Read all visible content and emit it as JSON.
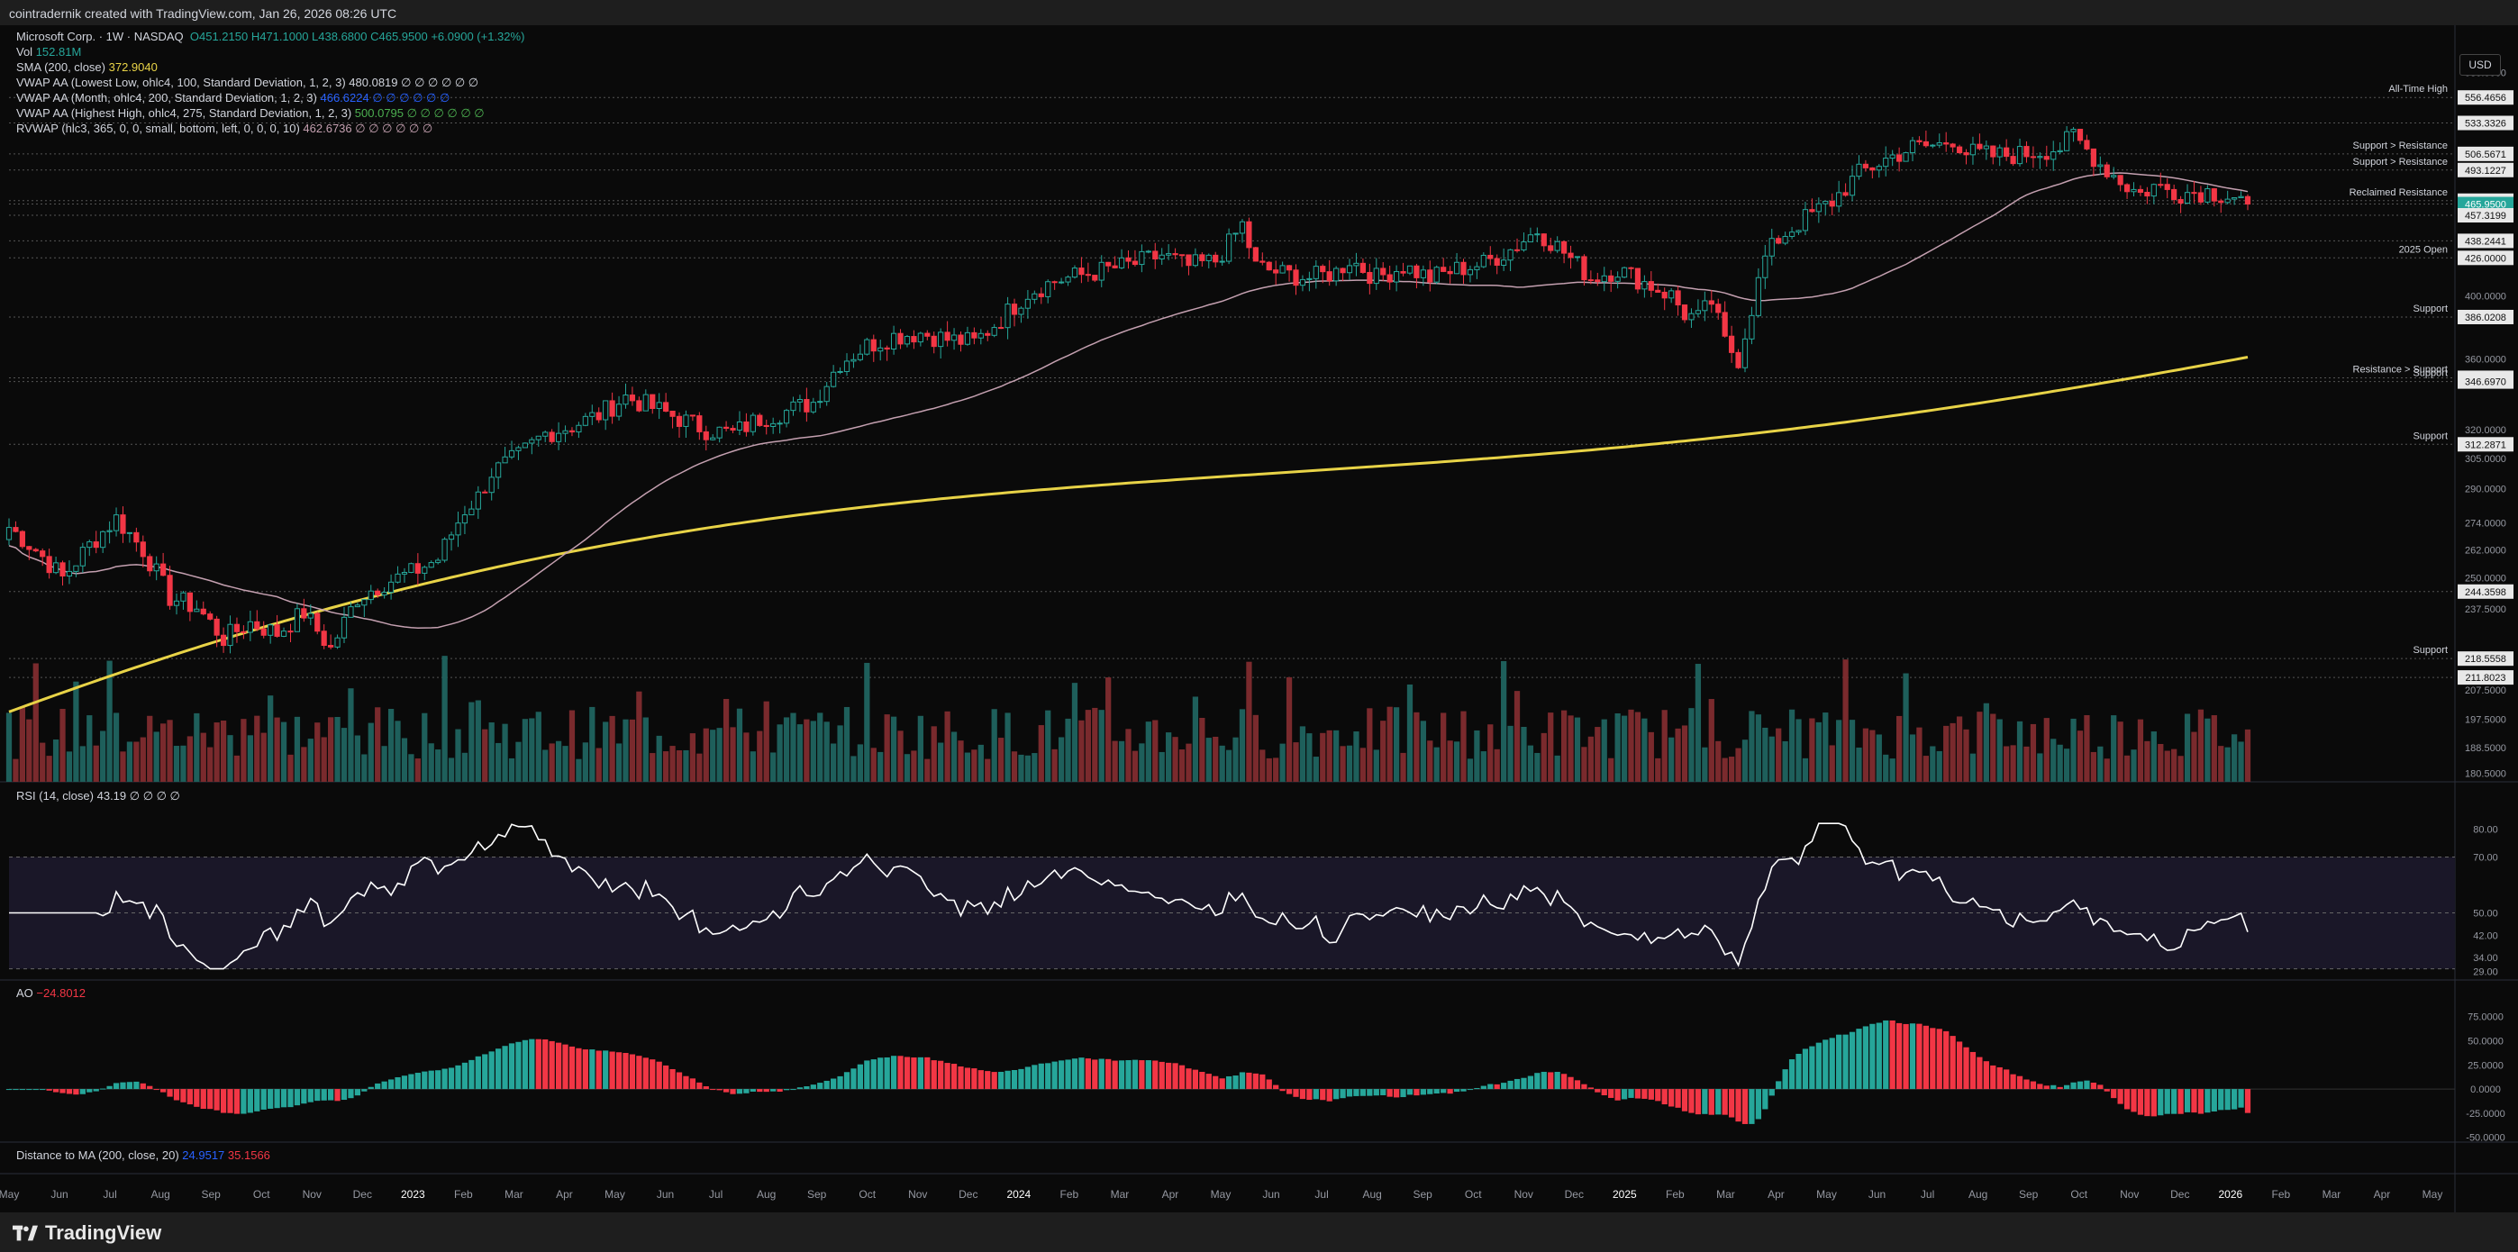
{
  "header": {
    "credit": "cointradernik created with TradingView.com, Jan 26, 2026 08:26 UTC"
  },
  "brand": {
    "name": "TradingView"
  },
  "currency_button": "USD",
  "legend": {
    "symbol": "Microsoft Corp. · 1W · NASDAQ",
    "ohlc": "O451.2150  H471.1000  L438.6800  C465.9500  +6.0900 (+1.32%)",
    "vol_label": "Vol",
    "vol_value": "152.81M",
    "sma_label": "SMA (200, close)",
    "sma_value": "372.9040",
    "vwap1_label": "VWAP AA (Lowest Low, ohlc4, 100, Standard Deviation, 1, 2, 3)",
    "vwap1_value": "480.0819 ∅ ∅ ∅ ∅ ∅ ∅",
    "vwap2_label": "VWAP AA (Month, ohlc4, 200, Standard Deviation, 1, 2, 3)",
    "vwap2_value": "466.6224 ∅ ∅ ∅ ∅ ∅ ∅",
    "vwap3_label": "VWAP AA (Highest High, ohlc4, 275, Standard Deviation, 1, 2, 3)",
    "vwap3_value": "500.0795 ∅ ∅ ∅ ∅ ∅ ∅",
    "rvwap_label": "RVWAP (hlc3, 365, 0, 0, small, bottom, left, 0, 0, 0, 10)",
    "rvwap_value": "462.6736 ∅ ∅ ∅ ∅ ∅ ∅",
    "rsi_label": "RSI (14, close)",
    "rsi_value": "43.19 ∅ ∅ ∅ ∅",
    "ao_label": "AO",
    "ao_value": "−24.8012",
    "dist_label": "Distance to MA (200, close, 20)",
    "dist_value1": "24.9517",
    "dist_value2": "35.1566"
  },
  "colors": {
    "up": "#26a69a",
    "down": "#f23645",
    "sma": "#e8d347",
    "rvwap": "#c4a0b0",
    "green_vwap": "#4caf50",
    "rsi": "#ffffff"
  },
  "chart_data": [
    {
      "type": "candlestick",
      "title": "Microsoft Corp. · 1W · NASDAQ",
      "x_ticks": [
        "May",
        "Jun",
        "Jul",
        "Aug",
        "Sep",
        "Oct",
        "Nov",
        "Dec",
        "2023",
        "Feb",
        "Mar",
        "Apr",
        "May",
        "Jun",
        "Jul",
        "Aug",
        "Sep",
        "Oct",
        "Nov",
        "Dec",
        "2024",
        "Feb",
        "Mar",
        "Apr",
        "May",
        "Jun",
        "Jul",
        "Aug",
        "Sep",
        "Oct",
        "Nov",
        "Dec",
        "2025",
        "Feb",
        "Mar",
        "Apr",
        "May",
        "Jun",
        "Jul",
        "Aug",
        "Sep",
        "Oct",
        "Nov",
        "Dec",
        "2026",
        "Feb",
        "Mar",
        "Apr",
        "May"
      ],
      "y_ticks": [
        580,
        556.4656,
        533.3326,
        506.5671,
        493.1227,
        468.6047,
        465.95,
        457.3199,
        438.2441,
        426,
        400,
        386.0208,
        360,
        348.8729,
        346.697,
        320,
        312.2871,
        305,
        290,
        274,
        262,
        250,
        244.3598,
        237.5,
        218.5558,
        211.8023,
        207.5,
        197.5,
        188.5,
        180.5
      ],
      "y_range": [
        178,
        600
      ],
      "y_scale": "log",
      "horizontal_levels": [
        {
          "value": 556.4656,
          "label": "All-Time High"
        },
        {
          "value": 533.3326,
          "label": ""
        },
        {
          "value": 506.5671,
          "label": "Support > Resistance"
        },
        {
          "value": 493.1227,
          "label": "Support > Resistance"
        },
        {
          "value": 468.6047,
          "label": "Reclaimed Resistance"
        },
        {
          "value": 465.95,
          "label": ""
        },
        {
          "value": 457.3199,
          "label": ""
        },
        {
          "value": 438.2441,
          "label": ""
        },
        {
          "value": 426.0,
          "label": "2025 Open"
        },
        {
          "value": 386.0208,
          "label": "Support"
        },
        {
          "value": 348.8729,
          "label": "Resistance > Support"
        },
        {
          "value": 346.697,
          "label": "Support"
        },
        {
          "value": 312.2871,
          "label": "Support"
        },
        {
          "value": 244.3598,
          "label": ""
        },
        {
          "value": 218.5558,
          "label": "Support"
        },
        {
          "value": 211.8023,
          "label": ""
        }
      ],
      "close_path": [
        [
          0,
          272
        ],
        [
          4,
          262
        ],
        [
          8,
          250
        ],
        [
          12,
          264
        ],
        [
          16,
          276
        ],
        [
          20,
          262
        ],
        [
          24,
          242
        ],
        [
          28,
          238
        ],
        [
          32,
          226
        ],
        [
          36,
          232
        ],
        [
          40,
          228
        ],
        [
          44,
          236
        ],
        [
          48,
          222
        ],
        [
          52,
          242
        ],
        [
          56,
          248
        ],
        [
          60,
          252
        ],
        [
          64,
          258
        ],
        [
          68,
          280
        ],
        [
          70,
          286
        ],
        [
          72,
          298
        ],
        [
          76,
          306
        ],
        [
          80,
          318
        ],
        [
          84,
          322
        ],
        [
          88,
          328
        ],
        [
          92,
          338
        ],
        [
          96,
          332
        ],
        [
          100,
          326
        ],
        [
          104,
          320
        ],
        [
          108,
          318
        ],
        [
          112,
          326
        ],
        [
          116,
          330
        ],
        [
          120,
          335
        ],
        [
          124,
          358
        ],
        [
          128,
          368
        ],
        [
          132,
          374
        ],
        [
          136,
          376
        ],
        [
          140,
          372
        ],
        [
          144,
          370
        ],
        [
          148,
          385
        ],
        [
          152,
          402
        ],
        [
          156,
          410
        ],
        [
          160,
          414
        ],
        [
          164,
          418
        ],
        [
          168,
          422
        ],
        [
          172,
          428
        ],
        [
          176,
          420
        ],
        [
          180,
          424
        ],
        [
          182,
          436
        ],
        [
          184,
          450
        ],
        [
          186,
          420
        ],
        [
          190,
          415
        ],
        [
          194,
          412
        ],
        [
          198,
          416
        ],
        [
          200,
          425
        ],
        [
          204,
          412
        ],
        [
          208,
          420
        ],
        [
          212,
          412
        ],
        [
          216,
          418
        ],
        [
          220,
          422
        ],
        [
          224,
          432
        ],
        [
          228,
          446
        ],
        [
          232,
          430
        ],
        [
          236,
          412
        ],
        [
          240,
          418
        ],
        [
          244,
          409
        ],
        [
          248,
          400
        ],
        [
          250,
          388
        ],
        [
          252,
          385
        ],
        [
          254,
          396
        ],
        [
          256,
          370
        ],
        [
          258,
          360
        ],
        [
          260,
          392
        ],
        [
          262,
          426
        ],
        [
          264,
          440
        ],
        [
          268,
          455
        ],
        [
          272,
          468
        ],
        [
          276,
          490
        ],
        [
          280,
          502
        ],
        [
          284,
          512
        ],
        [
          288,
          514
        ],
        [
          290,
          520
        ],
        [
          292,
          508
        ],
        [
          296,
          505
        ],
        [
          300,
          506
        ],
        [
          304,
          510
        ],
        [
          306,
          512
        ],
        [
          308,
          522
        ],
        [
          310,
          510
        ],
        [
          312,
          498
        ],
        [
          316,
          480
        ],
        [
          318,
          474
        ],
        [
          320,
          480
        ],
        [
          324,
          475
        ],
        [
          328,
          476
        ],
        [
          332,
          472
        ],
        [
          334,
          466
        ]
      ],
      "volume_note": "per-week volume histogram, colored by candle direction"
    },
    {
      "type": "line",
      "title": "RSI (14, close)",
      "value": 43.19,
      "y_ticks": [
        80,
        70,
        50,
        42,
        34,
        29
      ],
      "bands": [
        70,
        50,
        30
      ],
      "y_range": [
        26,
        84
      ]
    },
    {
      "type": "bar",
      "title": "AO",
      "value": -24.8012,
      "y_ticks": [
        75,
        50,
        25,
        0,
        -25,
        -50
      ],
      "y_range": [
        -55,
        85
      ]
    }
  ],
  "labels_right": {
    "ath": "All-Time High",
    "sr1": "Support > Resistance",
    "sr2": "Support > Resistance",
    "reclaimed": "Reclaimed Resistance",
    "open2025": "2025 Open",
    "support1": "Support",
    "rs": "Resistance > Support",
    "support2": "Support",
    "support3": "Support",
    "support4": "Support"
  }
}
